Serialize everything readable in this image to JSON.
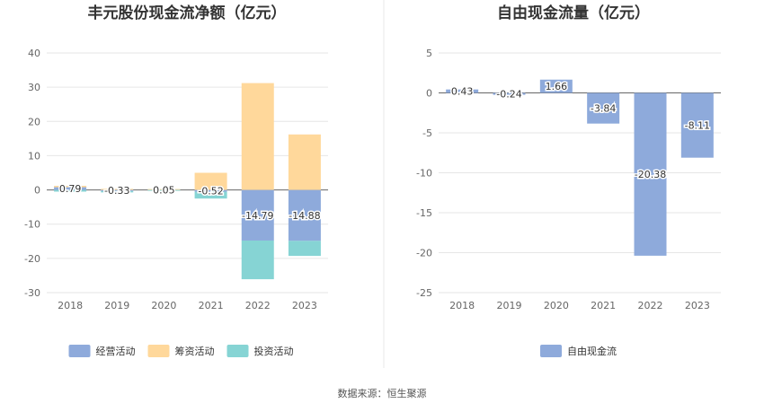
{
  "source_note": "数据来源：恒生聚源",
  "chart_data": [
    {
      "type": "bar",
      "title": "丰元股份现金流净额（亿元）",
      "categories": [
        "2018",
        "2019",
        "2020",
        "2021",
        "2022",
        "2023"
      ],
      "series": [
        {
          "name": "经营活动",
          "color": "#8eaadb",
          "values": [
            0.79,
            -0.33,
            0.05,
            -0.52,
            -14.79,
            -14.88
          ]
        },
        {
          "name": "筹资活动",
          "color": "#ffd89b",
          "values": [
            0.4,
            0.3,
            0.2,
            5.0,
            31.2,
            16.2
          ]
        },
        {
          "name": "投资活动",
          "color": "#86d4d4",
          "values": [
            -0.5,
            -0.4,
            -0.15,
            -2.0,
            -11.3,
            -4.4
          ]
        }
      ],
      "data_labels": [
        "0.79",
        "-0.33",
        "0.05",
        "-0.52",
        "-14.79",
        "-14.88"
      ],
      "ylim": [
        -30,
        40
      ],
      "yticks": [
        40,
        30,
        20,
        10,
        0,
        -10,
        -20,
        -30
      ],
      "grid": true,
      "legend": "bottom",
      "stacked": true
    },
    {
      "type": "bar",
      "title": "自由现金流量（亿元）",
      "categories": [
        "2018",
        "2019",
        "2020",
        "2021",
        "2022",
        "2023"
      ],
      "series": [
        {
          "name": "自由现金流",
          "color": "#8eaadb",
          "values": [
            0.43,
            -0.24,
            1.66,
            -3.84,
            -20.38,
            -8.11
          ]
        }
      ],
      "data_labels": [
        "0.43",
        "-0.24",
        "1.66",
        "-3.84",
        "-20.38",
        "-8.11"
      ],
      "ylim": [
        -25,
        5
      ],
      "yticks": [
        5,
        0,
        -5,
        -10,
        -15,
        -20,
        -25
      ],
      "grid": true,
      "legend": "bottom"
    }
  ]
}
